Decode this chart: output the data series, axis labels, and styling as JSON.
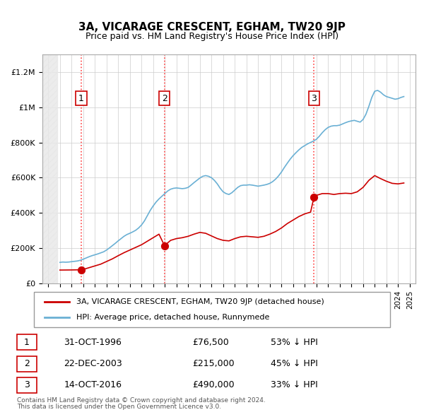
{
  "title": "3A, VICARAGE CRESCENT, EGHAM, TW20 9JP",
  "subtitle": "Price paid vs. HM Land Registry's House Price Index (HPI)",
  "legend_line1": "3A, VICARAGE CRESCENT, EGHAM, TW20 9JP (detached house)",
  "legend_line2": "HPI: Average price, detached house, Runnymede",
  "footer1": "Contains HM Land Registry data © Crown copyright and database right 2024.",
  "footer2": "This data is licensed under the Open Government Licence v3.0.",
  "sales": [
    {
      "num": 1,
      "date": "31-OCT-1996",
      "price": 76500,
      "pct": "53% ↓ HPI",
      "year": 1996.83
    },
    {
      "num": 2,
      "date": "22-DEC-2003",
      "price": 215000,
      "pct": "45% ↓ HPI",
      "year": 2003.97
    },
    {
      "num": 3,
      "date": "14-OCT-2016",
      "price": 490000,
      "pct": "33% ↓ HPI",
      "year": 2016.79
    }
  ],
  "hpi_color": "#6ab0d4",
  "price_color": "#cc0000",
  "dashed_color": "#ff4444",
  "grid_color": "#cccccc",
  "hatch_color": "#dddddd",
  "ylim": [
    0,
    1300000
  ],
  "xlim_start": 1993.5,
  "xlim_end": 2025.5,
  "hpi_data": {
    "years": [
      1995.0,
      1995.25,
      1995.5,
      1995.75,
      1996.0,
      1996.25,
      1996.5,
      1996.75,
      1997.0,
      1997.25,
      1997.5,
      1997.75,
      1998.0,
      1998.25,
      1998.5,
      1998.75,
      1999.0,
      1999.25,
      1999.5,
      1999.75,
      2000.0,
      2000.25,
      2000.5,
      2000.75,
      2001.0,
      2001.25,
      2001.5,
      2001.75,
      2002.0,
      2002.25,
      2002.5,
      2002.75,
      2003.0,
      2003.25,
      2003.5,
      2003.75,
      2004.0,
      2004.25,
      2004.5,
      2004.75,
      2005.0,
      2005.25,
      2005.5,
      2005.75,
      2006.0,
      2006.25,
      2006.5,
      2006.75,
      2007.0,
      2007.25,
      2007.5,
      2007.75,
      2008.0,
      2008.25,
      2008.5,
      2008.75,
      2009.0,
      2009.25,
      2009.5,
      2009.75,
      2010.0,
      2010.25,
      2010.5,
      2010.75,
      2011.0,
      2011.25,
      2011.5,
      2011.75,
      2012.0,
      2012.25,
      2012.5,
      2012.75,
      2013.0,
      2013.25,
      2013.5,
      2013.75,
      2014.0,
      2014.25,
      2014.5,
      2014.75,
      2015.0,
      2015.25,
      2015.5,
      2015.75,
      2016.0,
      2016.25,
      2016.5,
      2016.75,
      2017.0,
      2017.25,
      2017.5,
      2017.75,
      2018.0,
      2018.25,
      2018.5,
      2018.75,
      2019.0,
      2019.25,
      2019.5,
      2019.75,
      2020.0,
      2020.25,
      2020.5,
      2020.75,
      2021.0,
      2021.25,
      2021.5,
      2021.75,
      2022.0,
      2022.25,
      2022.5,
      2022.75,
      2023.0,
      2023.25,
      2023.5,
      2023.75,
      2024.0,
      2024.25,
      2024.5
    ],
    "values": [
      120000,
      122000,
      121000,
      122000,
      124000,
      126000,
      128000,
      132000,
      138000,
      145000,
      152000,
      158000,
      163000,
      168000,
      174000,
      180000,
      190000,
      202000,
      215000,
      228000,
      242000,
      255000,
      268000,
      278000,
      285000,
      293000,
      302000,
      315000,
      332000,
      355000,
      385000,
      415000,
      440000,
      462000,
      480000,
      495000,
      510000,
      525000,
      535000,
      540000,
      542000,
      540000,
      538000,
      540000,
      545000,
      558000,
      572000,
      585000,
      598000,
      608000,
      612000,
      608000,
      600000,
      585000,
      565000,
      540000,
      520000,
      510000,
      505000,
      515000,
      530000,
      545000,
      555000,
      558000,
      558000,
      560000,
      558000,
      555000,
      552000,
      555000,
      558000,
      562000,
      568000,
      578000,
      592000,
      610000,
      632000,
      658000,
      682000,
      705000,
      725000,
      742000,
      758000,
      772000,
      782000,
      792000,
      800000,
      808000,
      818000,
      835000,
      855000,
      872000,
      885000,
      892000,
      895000,
      895000,
      898000,
      905000,
      912000,
      918000,
      922000,
      925000,
      920000,
      915000,
      930000,
      960000,
      1005000,
      1055000,
      1090000,
      1095000,
      1085000,
      1070000,
      1060000,
      1055000,
      1050000,
      1045000,
      1048000,
      1055000,
      1060000
    ]
  },
  "price_data": {
    "years": [
      1996.83,
      2003.97,
      2016.79
    ],
    "values": [
      76500,
      215000,
      490000
    ]
  },
  "hpi_adjusted_data": {
    "segments": [
      {
        "years": [
          1995.0,
          1995.5,
          1996.0,
          1996.5,
          1996.83
        ],
        "values": [
          76500,
          76800,
          77200,
          77800,
          76500
        ]
      },
      {
        "years": [
          1996.83,
          1997.0,
          1997.5,
          1998.0,
          1998.5,
          1999.0,
          1999.5,
          2000.0,
          2000.5,
          2001.0,
          2001.5,
          2002.0,
          2002.5,
          2003.0,
          2003.5,
          2003.97
        ],
        "values": [
          76500,
          80000,
          90000,
          100000,
          110000,
          125000,
          140000,
          158000,
          175000,
          190000,
          205000,
          220000,
          240000,
          260000,
          280000,
          215000
        ]
      },
      {
        "years": [
          2003.97,
          2004.5,
          2005.0,
          2005.5,
          2006.0,
          2006.5,
          2007.0,
          2007.5,
          2008.0,
          2008.5,
          2009.0,
          2009.5,
          2010.0,
          2010.5,
          2011.0,
          2011.5,
          2012.0,
          2012.5,
          2013.0,
          2013.5,
          2014.0,
          2014.5,
          2015.0,
          2015.5,
          2016.0,
          2016.5,
          2016.79
        ],
        "values": [
          215000,
          245000,
          255000,
          260000,
          268000,
          280000,
          290000,
          285000,
          270000,
          255000,
          245000,
          242000,
          255000,
          265000,
          268000,
          265000,
          262000,
          268000,
          280000,
          295000,
          315000,
          340000,
          360000,
          380000,
          395000,
          405000,
          490000
        ]
      },
      {
        "years": [
          2016.79,
          2017.0,
          2017.5,
          2018.0,
          2018.5,
          2019.0,
          2019.5,
          2020.0,
          2020.5,
          2021.0,
          2021.5,
          2022.0,
          2022.5,
          2023.0,
          2023.5,
          2024.0,
          2024.5
        ],
        "values": [
          490000,
          500000,
          510000,
          510000,
          505000,
          510000,
          512000,
          510000,
          520000,
          545000,
          585000,
          612000,
          595000,
          580000,
          568000,
          565000,
          570000
        ]
      }
    ]
  }
}
